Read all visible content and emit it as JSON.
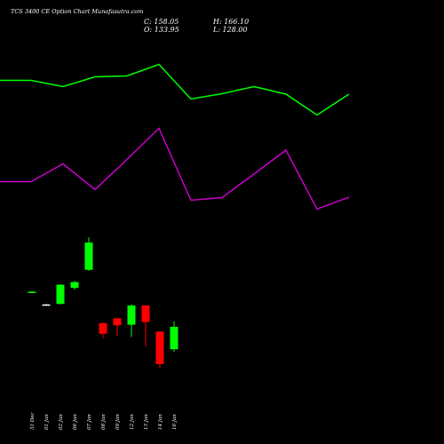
{
  "header": {
    "title": "TCS 3400 CE Option Chart Munafasutra.com",
    "close_label": "C: 158.05",
    "open_label": "O: 133.95",
    "high_label": "H: 166.10",
    "low_label": "L: 128.00"
  },
  "colors": {
    "background": "#000000",
    "up": "#00ff00",
    "down": "#ff0000",
    "line_top": "#00ff00",
    "line_bottom": "#cc00cc",
    "text": "#ffffff"
  },
  "chart_data": {
    "type": "candlestick",
    "categories": [
      "31 Dec",
      "01 Jan",
      "02 Jan",
      "06 Jan",
      "07 Jan",
      "08 Jan",
      "09 Jan",
      "12 Jan",
      "13 Jan",
      "14 Jan",
      "16 Jan"
    ],
    "candles": [
      {
        "open": 79.5,
        "close": 80.5,
        "high": 81.0,
        "low": 79.0,
        "dir": "up"
      },
      {
        "open": 68.5,
        "close": 68.5,
        "high": 69.0,
        "low": 68.0,
        "dir": "flat"
      },
      {
        "open": 69.0,
        "close": 87.0,
        "high": 87.5,
        "low": 68.5,
        "dir": "up"
      },
      {
        "open": 84.0,
        "close": 89.5,
        "high": 90.5,
        "low": 82.5,
        "dir": "up"
      },
      {
        "open": 101.0,
        "close": 126.5,
        "high": 131.5,
        "low": 100.0,
        "dir": "up"
      },
      {
        "open": 51.0,
        "close": 41.0,
        "high": 51.5,
        "low": 37.0,
        "dir": "down"
      },
      {
        "open": 55.5,
        "close": 49.0,
        "high": 56.0,
        "low": 39.0,
        "dir": "down"
      },
      {
        "open": 49.5,
        "close": 67.5,
        "high": 68.5,
        "low": 38.0,
        "dir": "up"
      },
      {
        "open": 67.5,
        "close": 52.0,
        "high": 68.0,
        "low": 29.0,
        "dir": "down"
      },
      {
        "open": 43.0,
        "close": 12.5,
        "high": 43.5,
        "low": 9.0,
        "dir": "down"
      },
      {
        "open": 26.5,
        "close": 47.5,
        "high": 52.5,
        "low": 24.0,
        "dir": "up"
      }
    ],
    "line_top": [
      90.5,
      90.5,
      97.5,
      86.5,
      85.5,
      72.5,
      111.5,
      105.5,
      97.5,
      106.0,
      129.5,
      106.0
    ],
    "line_bottom": [
      204.5,
      204.5,
      184.5,
      213.5,
      179.5,
      144.5,
      225.5,
      222.5,
      196.0,
      169.0,
      235.5,
      222.0
    ],
    "grid": false,
    "legend": "none"
  }
}
